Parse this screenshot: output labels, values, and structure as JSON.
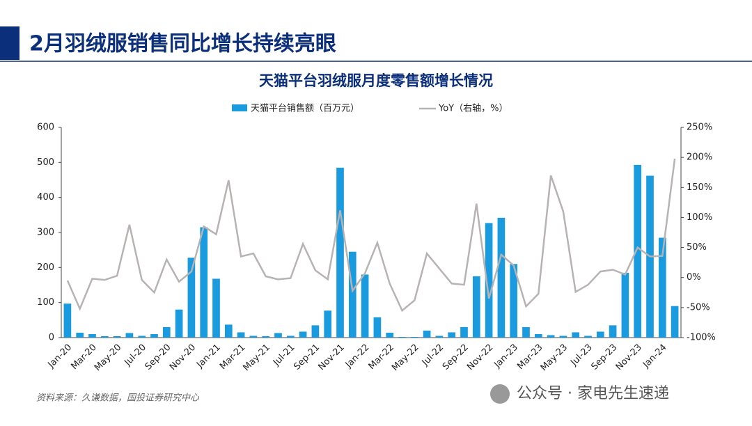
{
  "header": {
    "title": "2月羽绒服销售同比增长持续亮眼"
  },
  "chart_data": {
    "type": "bar-line",
    "title": "天猫平台羽绒服月度零售额增长情况",
    "categories": [
      "Jan-20",
      null,
      "Mar-20",
      null,
      "May-20",
      null,
      "Jul-20",
      null,
      "Sep-20",
      null,
      "Nov-20",
      null,
      "Jan-21",
      null,
      "Mar-21",
      null,
      "May-21",
      null,
      "Jul-21",
      null,
      "Sep-21",
      null,
      "Nov-21",
      null,
      "Jan-22",
      null,
      "Mar-22",
      null,
      "May-22",
      null,
      "Jul-22",
      null,
      "Sep-22",
      null,
      "Nov-22",
      null,
      "Jan-23",
      null,
      "Mar-23",
      null,
      "May-23",
      null,
      "Jul-23",
      null,
      "Sep-23",
      null,
      "Nov-23",
      null,
      "Jan-24",
      null
    ],
    "series": [
      {
        "name": "天猫平台销售额（百万元）",
        "color": "#1a9be0",
        "type": "bar",
        "values": [
          97,
          14,
          10,
          4,
          4,
          13,
          5,
          10,
          30,
          80,
          228,
          315,
          168,
          37,
          15,
          5,
          4,
          13,
          5,
          17,
          35,
          77,
          485,
          245,
          180,
          58,
          14,
          2,
          2,
          20,
          5,
          15,
          30,
          175,
          327,
          342,
          210,
          30,
          10,
          7,
          5,
          15,
          5,
          17,
          35,
          185,
          493,
          462,
          285,
          90
        ]
      },
      {
        "name": "YoY（右轴，%）",
        "color": "#b8b3b3",
        "type": "line",
        "axis": "y2",
        "values": [
          -5,
          -52,
          -2,
          -4,
          3,
          88,
          -4,
          -25,
          30,
          -7,
          10,
          85,
          72,
          162,
          35,
          40,
          2,
          -3,
          -1,
          56,
          12,
          -3,
          112,
          -22,
          7,
          58,
          -10,
          -55,
          -38,
          40,
          15,
          -10,
          -12,
          123,
          -35,
          38,
          20,
          -48,
          -27,
          170,
          110,
          -24,
          -12,
          10,
          13,
          5,
          50,
          35,
          36,
          198
        ]
      }
    ],
    "ylim": [
      0,
      600
    ],
    "yticks": [
      0,
      100,
      200,
      300,
      400,
      500,
      600
    ],
    "y2lim": [
      -100,
      250
    ],
    "y2ticks": [
      {
        "value": -100,
        "label": "-100%"
      },
      {
        "value": -50,
        "label": "-50%"
      },
      {
        "value": 0,
        "label": "0%"
      },
      {
        "value": 50,
        "label": "50%"
      },
      {
        "value": 100,
        "label": "100%"
      },
      {
        "value": 150,
        "label": "150%"
      },
      {
        "value": 200,
        "label": "200%"
      },
      {
        "value": 250,
        "label": "250%"
      }
    ],
    "legend": "top"
  },
  "footer": {
    "source": "资料来源：久谦数据，国投证券研究中心",
    "watermark": "公众号 · 家电先生速递"
  }
}
